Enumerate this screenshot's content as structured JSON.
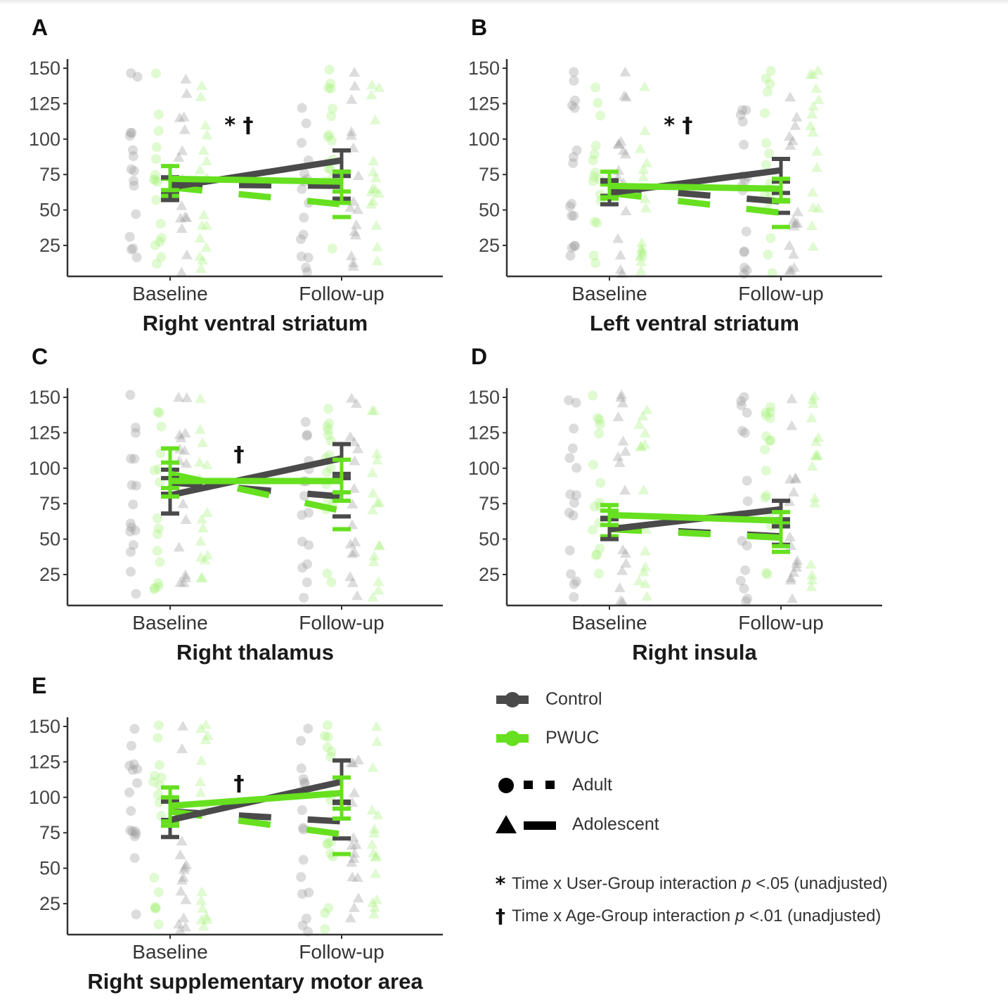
{
  "colors": {
    "control": "#4a4a4a",
    "pwuc": "#66e01f",
    "control_points": "#9a9a9a",
    "pwuc_points": "#a6f07c",
    "axis": "#333333"
  },
  "legend": {
    "groups": [
      {
        "label": "Control",
        "key": "control"
      },
      {
        "label": "PWUC",
        "key": "pwuc"
      }
    ],
    "ages": [
      {
        "label": "Adult",
        "marker": "circle",
        "line": "dashed"
      },
      {
        "label": "Adolescent",
        "marker": "triangle",
        "line": "solid"
      }
    ],
    "notes": [
      {
        "symbol": "*",
        "text_before": "Time x User-Group interaction ",
        "p": "p",
        "text_after": " <.05 (unadjusted)"
      },
      {
        "symbol": "†",
        "text_before": "Time x Age-Group interaction ",
        "p": "p",
        "text_after": " <.01 (unadjusted)"
      }
    ]
  },
  "chart_data": [
    {
      "type": "line",
      "panel": "A",
      "title": "Right ventral striatum",
      "categories": [
        "Baseline",
        "Follow-up"
      ],
      "yticks": [
        25,
        50,
        75,
        100,
        125,
        150
      ],
      "ylim": [
        3,
        155
      ],
      "significance": "* †",
      "series": [
        {
          "name": "Control Adolescent",
          "group": "control",
          "age": "adolescent",
          "values": [
            66,
            85
          ],
          "err_low": [
            57,
            77
          ],
          "err_high": [
            73,
            92
          ]
        },
        {
          "name": "PWUC Adolescent",
          "group": "pwuc",
          "age": "adolescent",
          "values": [
            72,
            70
          ],
          "err_low": [
            64,
            55
          ],
          "err_high": [
            81,
            77
          ]
        },
        {
          "name": "Control Adult",
          "group": "control",
          "age": "adult",
          "values": [
            68,
            67
          ],
          "err_low": [
            62,
            58
          ],
          "err_high": [
            73,
            74
          ]
        },
        {
          "name": "PWUC Adult",
          "group": "pwuc",
          "age": "adult",
          "values": [
            66,
            54
          ],
          "err_low": [
            60,
            45
          ],
          "err_high": [
            72,
            63
          ]
        }
      ]
    },
    {
      "type": "line",
      "panel": "B",
      "title": "Left ventral striatum",
      "categories": [
        "Baseline",
        "Follow-up"
      ],
      "yticks": [
        25,
        50,
        75,
        100,
        125,
        150
      ],
      "ylim": [
        3,
        155
      ],
      "significance": "* †",
      "series": [
        {
          "name": "Control Adolescent",
          "group": "control",
          "age": "adolescent",
          "values": [
            62,
            78
          ],
          "err_low": [
            54,
            70
          ],
          "err_high": [
            70,
            86
          ]
        },
        {
          "name": "PWUC Adolescent",
          "group": "pwuc",
          "age": "adolescent",
          "values": [
            67,
            65
          ],
          "err_low": [
            59,
            56
          ],
          "err_high": [
            77,
            72
          ]
        },
        {
          "name": "Control Adult",
          "group": "control",
          "age": "adult",
          "values": [
            66,
            56
          ],
          "err_low": [
            60,
            48
          ],
          "err_high": [
            71,
            62
          ]
        },
        {
          "name": "PWUC Adult",
          "group": "pwuc",
          "age": "adult",
          "values": [
            62,
            48
          ],
          "err_low": [
            58,
            38
          ],
          "err_high": [
            68,
            57
          ]
        }
      ]
    },
    {
      "type": "line",
      "panel": "C",
      "title": "Right thalamus",
      "categories": [
        "Baseline",
        "Follow-up"
      ],
      "yticks": [
        25,
        50,
        75,
        100,
        125,
        150
      ],
      "ylim": [
        3,
        155
      ],
      "significance": "†",
      "series": [
        {
          "name": "Control Adolescent",
          "group": "control",
          "age": "adolescent",
          "values": [
            81,
            107
          ],
          "err_low": [
            68,
            96
          ],
          "err_high": [
            93,
            117
          ]
        },
        {
          "name": "PWUC Adolescent",
          "group": "pwuc",
          "age": "adolescent",
          "values": [
            91,
            91
          ],
          "err_low": [
            80,
            77
          ],
          "err_high": [
            114,
            106
          ]
        },
        {
          "name": "Control Adult",
          "group": "control",
          "age": "adult",
          "values": [
            90,
            80
          ],
          "err_low": [
            82,
            66
          ],
          "err_high": [
            99,
            93
          ]
        },
        {
          "name": "PWUC Adult",
          "group": "pwuc",
          "age": "adult",
          "values": [
            96,
            70
          ],
          "err_low": [
            86,
            57
          ],
          "err_high": [
            104,
            83
          ]
        }
      ]
    },
    {
      "type": "line",
      "panel": "D",
      "title": "Right insula",
      "categories": [
        "Baseline",
        "Follow-up"
      ],
      "yticks": [
        25,
        50,
        75,
        100,
        125,
        150
      ],
      "ylim": [
        3,
        155
      ],
      "significance": "",
      "series": [
        {
          "name": "Control Adolescent",
          "group": "control",
          "age": "adolescent",
          "values": [
            57,
            71
          ],
          "err_low": [
            50,
            64
          ],
          "err_high": [
            64,
            77
          ]
        },
        {
          "name": "PWUC Adolescent",
          "group": "pwuc",
          "age": "adolescent",
          "values": [
            67,
            63
          ],
          "err_low": [
            60,
            45
          ],
          "err_high": [
            74,
            69
          ]
        },
        {
          "name": "Control Adult",
          "group": "control",
          "age": "adult",
          "values": [
            58,
            52
          ],
          "err_low": [
            51,
            46
          ],
          "err_high": [
            65,
            59
          ]
        },
        {
          "name": "PWUC Adult",
          "group": "pwuc",
          "age": "adult",
          "values": [
            57,
            51
          ],
          "err_low": [
            52,
            41
          ],
          "err_high": [
            70,
            62
          ]
        }
      ]
    },
    {
      "type": "line",
      "panel": "E",
      "title": "Right supplementary motor area",
      "categories": [
        "Baseline",
        "Follow-up"
      ],
      "yticks": [
        25,
        50,
        75,
        100,
        125,
        150
      ],
      "ylim": [
        3,
        155
      ],
      "significance": "†",
      "series": [
        {
          "name": "Control Adolescent",
          "group": "control",
          "age": "adolescent",
          "values": [
            84,
            111
          ],
          "err_low": [
            72,
            97
          ],
          "err_high": [
            97,
            126
          ]
        },
        {
          "name": "PWUC Adolescent",
          "group": "pwuc",
          "age": "adolescent",
          "values": [
            94,
            103
          ],
          "err_low": [
            80,
            85
          ],
          "err_high": [
            107,
            114
          ]
        },
        {
          "name": "Control Adult",
          "group": "control",
          "age": "adult",
          "values": [
            90,
            83
          ],
          "err_low": [
            84,
            71
          ],
          "err_high": [
            97,
            96
          ]
        },
        {
          "name": "PWUC Adult",
          "group": "pwuc",
          "age": "adult",
          "values": [
            90,
            74
          ],
          "err_low": [
            83,
            60
          ],
          "err_high": [
            100,
            92
          ]
        }
      ]
    }
  ]
}
